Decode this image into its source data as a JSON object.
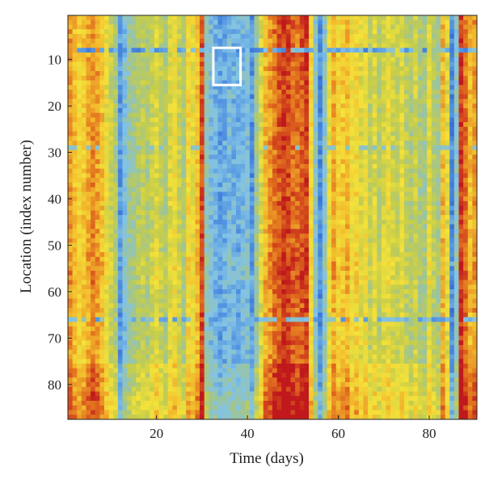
{
  "chart_data": {
    "type": "heatmap",
    "title": "",
    "xlabel": "Time (days)",
    "ylabel": "Location (index number)",
    "x": {
      "min": 1,
      "max": 90,
      "ticks": [
        20,
        40,
        60,
        80
      ]
    },
    "y": {
      "min": 1,
      "max": 87,
      "ticks": [
        10,
        20,
        30,
        40,
        50,
        60,
        70,
        80
      ],
      "reversed": true
    },
    "grid": false,
    "legend": "none",
    "colormap": [
      "#2e5fcf",
      "#4d8ee0",
      "#82c3e6",
      "#9cc49a",
      "#c6cd4a",
      "#f4e23a",
      "#f2b82c",
      "#e06a1e",
      "#c0181c"
    ],
    "column_levels": [
      0.8,
      0.72,
      0.66,
      0.7,
      0.76,
      0.82,
      0.78,
      0.72,
      0.6,
      0.5,
      0.44,
      0.15,
      0.26,
      0.36,
      0.4,
      0.45,
      0.48,
      0.44,
      0.5,
      0.58,
      0.48,
      0.44,
      0.56,
      0.62,
      0.5,
      0.42,
      0.66,
      0.6,
      0.72,
      0.92,
      0.32,
      0.25,
      0.21,
      0.17,
      0.2,
      0.24,
      0.22,
      0.2,
      0.23,
      0.26,
      0.14,
      0.38,
      0.55,
      0.74,
      0.8,
      0.86,
      0.9,
      0.95,
      0.92,
      0.88,
      0.86,
      0.9,
      0.94,
      0.64,
      0.3,
      0.12,
      0.3,
      0.6,
      0.76,
      0.66,
      0.7,
      0.74,
      0.6,
      0.66,
      0.56,
      0.62,
      0.48,
      0.56,
      0.46,
      0.54,
      0.6,
      0.52,
      0.5,
      0.56,
      0.48,
      0.44,
      0.52,
      0.42,
      0.4,
      0.58,
      0.46,
      0.4,
      0.74,
      0.56,
      0.12,
      0.3,
      0.95,
      0.86,
      0.72,
      0.8
    ],
    "highlight_box": {
      "x": [
        33,
        38
      ],
      "y": [
        8,
        15
      ]
    }
  }
}
